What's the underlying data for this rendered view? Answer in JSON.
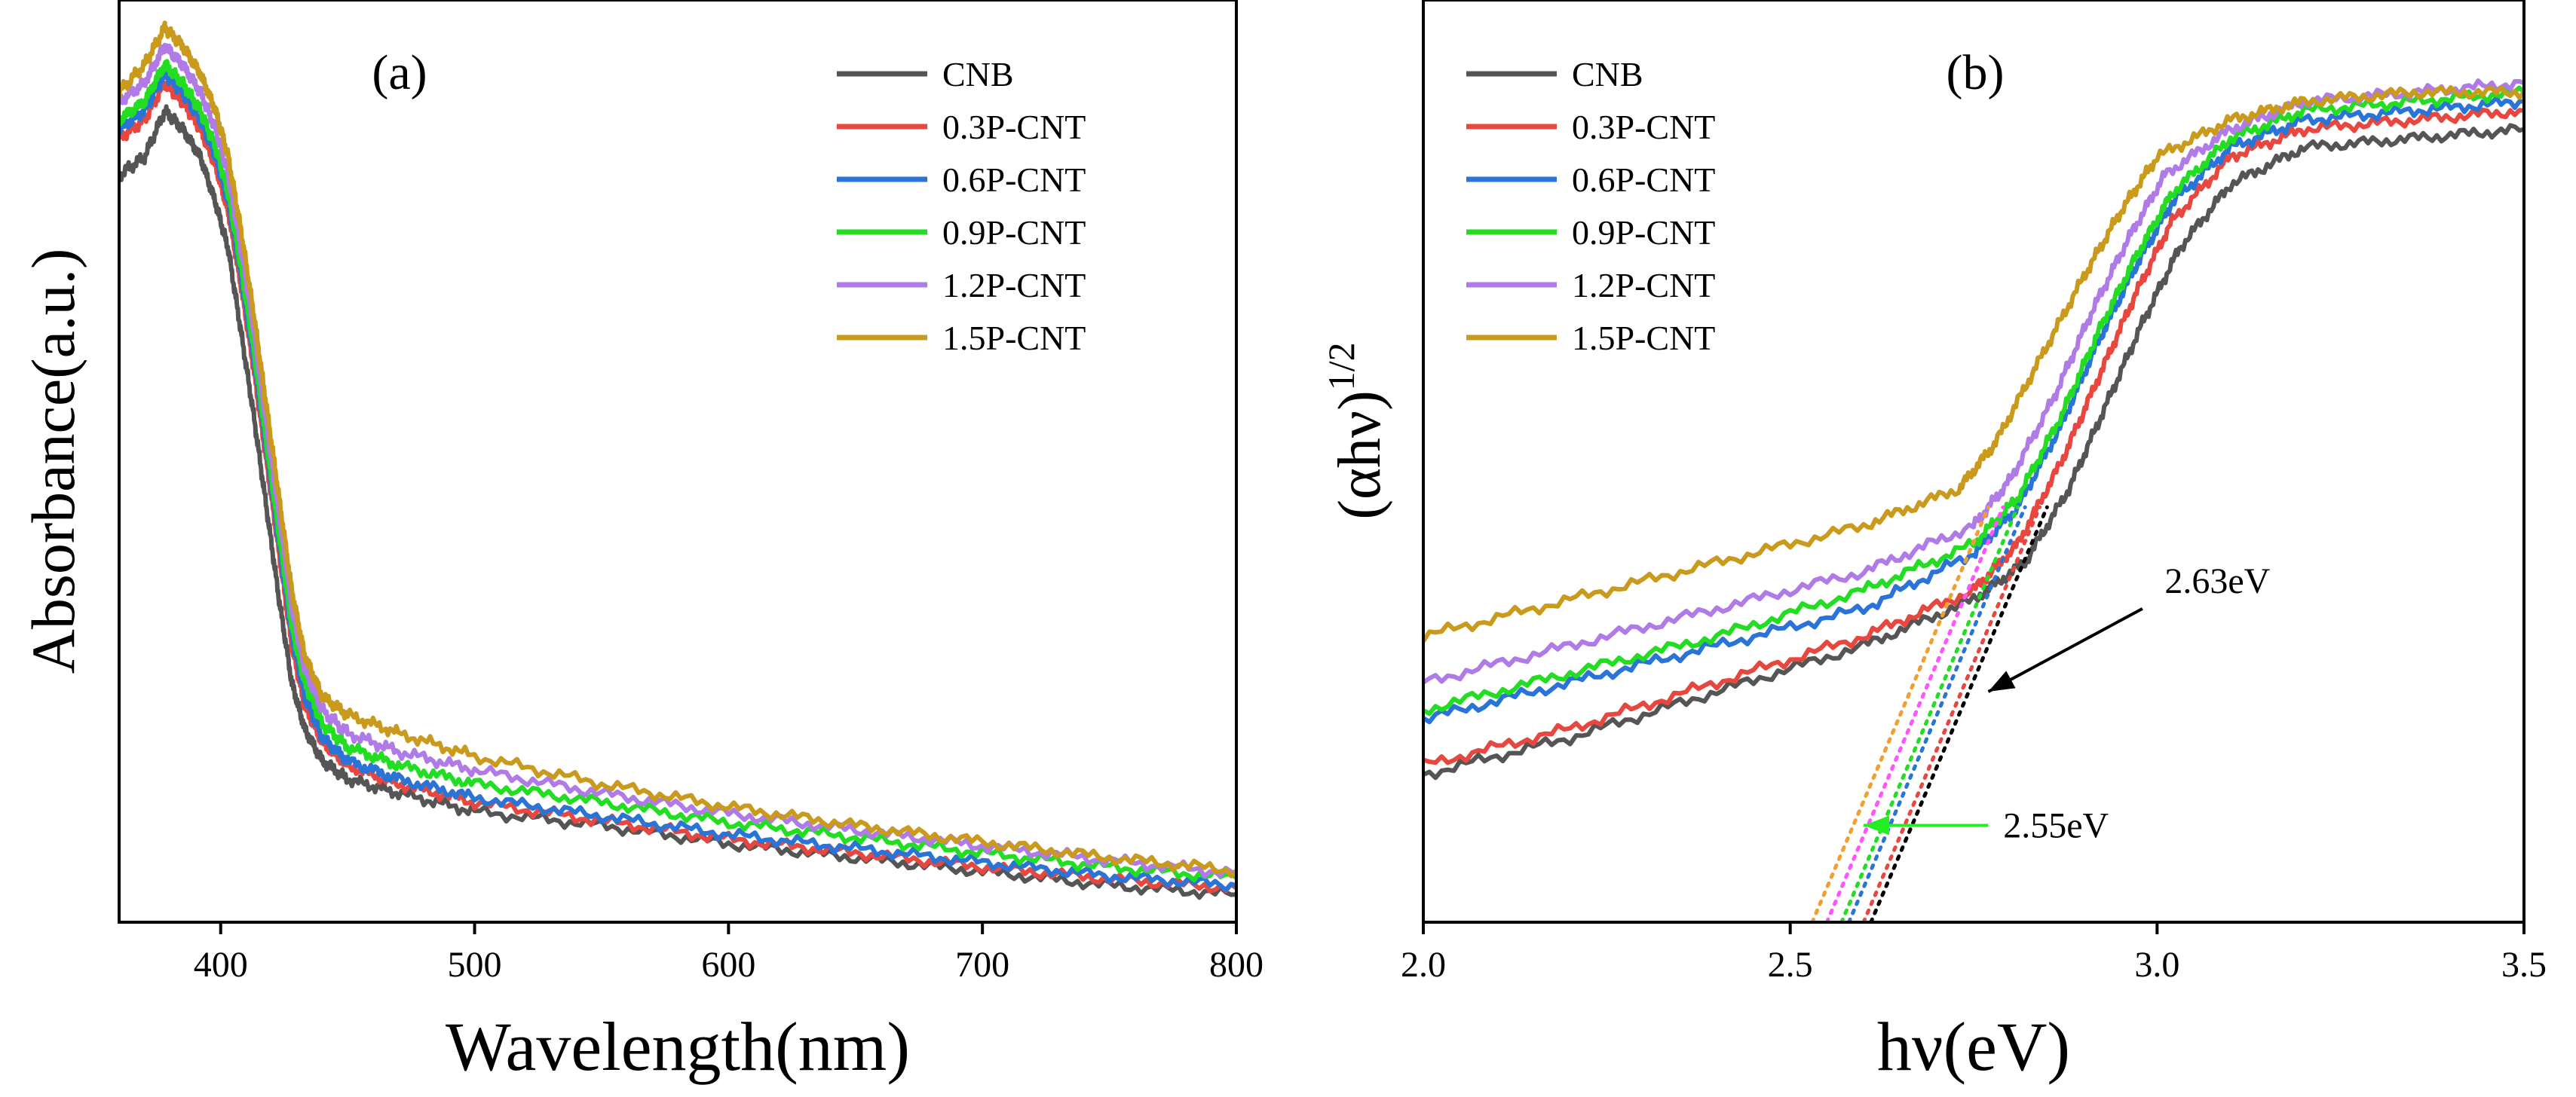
{
  "chart_data": [
    {
      "type": "line",
      "panel_label": "(a)",
      "xlabel": "Wavelength(nm)",
      "ylabel": "Absorbance(a.u.)",
      "xlim": [
        360,
        800
      ],
      "ylim": [
        0,
        1.0
      ],
      "xticks": [
        400,
        500,
        600,
        700,
        800
      ],
      "legend": "top-right",
      "series": [
        {
          "name": "CNB",
          "color": "#555555",
          "points": [
            [
              360,
              0.81
            ],
            [
              370,
              0.83
            ],
            [
              378,
              0.88
            ],
            [
              385,
              0.86
            ],
            [
              392,
              0.83
            ],
            [
              398,
              0.78
            ],
            [
              403,
              0.73
            ],
            [
              408,
              0.64
            ],
            [
              413,
              0.55
            ],
            [
              418,
              0.45
            ],
            [
              423,
              0.35
            ],
            [
              428,
              0.26
            ],
            [
              433,
              0.21
            ],
            [
              440,
              0.175
            ],
            [
              450,
              0.155
            ],
            [
              470,
              0.14
            ],
            [
              500,
              0.12
            ],
            [
              550,
              0.105
            ],
            [
              600,
              0.085
            ],
            [
              650,
              0.07
            ],
            [
              700,
              0.055
            ],
            [
              750,
              0.04
            ],
            [
              800,
              0.03
            ]
          ]
        },
        {
          "name": "0.3P-CNT",
          "color": "#e8473f",
          "points": [
            [
              360,
              0.85
            ],
            [
              370,
              0.87
            ],
            [
              378,
              0.91
            ],
            [
              385,
              0.89
            ],
            [
              392,
              0.86
            ],
            [
              398,
              0.82
            ],
            [
              403,
              0.77
            ],
            [
              408,
              0.69
            ],
            [
              413,
              0.6
            ],
            [
              418,
              0.5
            ],
            [
              423,
              0.4
            ],
            [
              428,
              0.3
            ],
            [
              433,
              0.235
            ],
            [
              440,
              0.195
            ],
            [
              450,
              0.17
            ],
            [
              470,
              0.15
            ],
            [
              500,
              0.13
            ],
            [
              550,
              0.11
            ],
            [
              600,
              0.09
            ],
            [
              650,
              0.075
            ],
            [
              700,
              0.06
            ],
            [
              750,
              0.047
            ],
            [
              800,
              0.037
            ]
          ]
        },
        {
          "name": "0.6P-CNT",
          "color": "#2a74d8",
          "points": [
            [
              360,
              0.86
            ],
            [
              370,
              0.88
            ],
            [
              378,
              0.92
            ],
            [
              385,
              0.9
            ],
            [
              392,
              0.87
            ],
            [
              398,
              0.83
            ],
            [
              403,
              0.78
            ],
            [
              408,
              0.7
            ],
            [
              413,
              0.61
            ],
            [
              418,
              0.51
            ],
            [
              423,
              0.41
            ],
            [
              428,
              0.31
            ],
            [
              433,
              0.245
            ],
            [
              440,
              0.2
            ],
            [
              450,
              0.175
            ],
            [
              470,
              0.155
            ],
            [
              500,
              0.135
            ],
            [
              550,
              0.115
            ],
            [
              600,
              0.095
            ],
            [
              650,
              0.08
            ],
            [
              700,
              0.065
            ],
            [
              750,
              0.05
            ],
            [
              800,
              0.04
            ]
          ]
        },
        {
          "name": "0.9P-CNT",
          "color": "#22dd22",
          "points": [
            [
              360,
              0.87
            ],
            [
              370,
              0.89
            ],
            [
              378,
              0.93
            ],
            [
              385,
              0.91
            ],
            [
              392,
              0.88
            ],
            [
              398,
              0.84
            ],
            [
              403,
              0.79
            ],
            [
              408,
              0.71
            ],
            [
              413,
              0.62
            ],
            [
              418,
              0.52
            ],
            [
              423,
              0.42
            ],
            [
              428,
              0.32
            ],
            [
              433,
              0.26
            ],
            [
              440,
              0.215
            ],
            [
              450,
              0.19
            ],
            [
              470,
              0.17
            ],
            [
              500,
              0.15
            ],
            [
              550,
              0.13
            ],
            [
              600,
              0.108
            ],
            [
              650,
              0.092
            ],
            [
              700,
              0.075
            ],
            [
              750,
              0.06
            ],
            [
              800,
              0.048
            ]
          ]
        },
        {
          "name": "1.2P-CNT",
          "color": "#b07be6",
          "points": [
            [
              360,
              0.89
            ],
            [
              370,
              0.91
            ],
            [
              378,
              0.95
            ],
            [
              385,
              0.93
            ],
            [
              392,
              0.9
            ],
            [
              398,
              0.86
            ],
            [
              403,
              0.81
            ],
            [
              408,
              0.73
            ],
            [
              413,
              0.64
            ],
            [
              418,
              0.54
            ],
            [
              423,
              0.44
            ],
            [
              428,
              0.34
            ],
            [
              433,
              0.275
            ],
            [
              440,
              0.23
            ],
            [
              450,
              0.205
            ],
            [
              470,
              0.185
            ],
            [
              500,
              0.165
            ],
            [
              550,
              0.14
            ],
            [
              600,
              0.118
            ],
            [
              650,
              0.1
            ],
            [
              700,
              0.083
            ],
            [
              750,
              0.067
            ],
            [
              800,
              0.053
            ]
          ]
        },
        {
          "name": "1.5P-CNT",
          "color": "#c99a1c",
          "points": [
            [
              360,
              0.9
            ],
            [
              370,
              0.93
            ],
            [
              378,
              0.97
            ],
            [
              385,
              0.95
            ],
            [
              392,
              0.92
            ],
            [
              398,
              0.88
            ],
            [
              403,
              0.83
            ],
            [
              408,
              0.75
            ],
            [
              413,
              0.66
            ],
            [
              418,
              0.56
            ],
            [
              423,
              0.46
            ],
            [
              428,
              0.36
            ],
            [
              433,
              0.29
            ],
            [
              440,
              0.245
            ],
            [
              450,
              0.225
            ],
            [
              470,
              0.205
            ],
            [
              500,
              0.18
            ],
            [
              550,
              0.15
            ],
            [
              600,
              0.125
            ],
            [
              650,
              0.105
            ],
            [
              700,
              0.087
            ],
            [
              750,
              0.07
            ],
            [
              800,
              0.056
            ]
          ]
        }
      ]
    },
    {
      "type": "line",
      "panel_label": "(b)",
      "xlabel": "hν(eV)",
      "ylabel_main": "(αhν)",
      "ylabel_sup": "1/2",
      "xlim": [
        2.0,
        3.5
      ],
      "ylim": [
        0,
        1.0
      ],
      "xticks": [
        "2.0",
        "2.5",
        "3.0",
        "3.5"
      ],
      "legend": "top-left",
      "series": [
        {
          "name": "CNB",
          "color": "#555555",
          "points": [
            [
              2.0,
              0.16
            ],
            [
              2.2,
              0.2
            ],
            [
              2.4,
              0.25
            ],
            [
              2.6,
              0.3
            ],
            [
              2.75,
              0.35
            ],
            [
              2.82,
              0.39
            ],
            [
              2.88,
              0.47
            ],
            [
              2.93,
              0.56
            ],
            [
              2.98,
              0.65
            ],
            [
              3.03,
              0.73
            ],
            [
              3.1,
              0.8
            ],
            [
              3.2,
              0.84
            ],
            [
              3.35,
              0.85
            ],
            [
              3.5,
              0.86
            ]
          ]
        },
        {
          "name": "0.3P-CNT",
          "color": "#e8473f",
          "points": [
            [
              2.0,
              0.17
            ],
            [
              2.2,
              0.21
            ],
            [
              2.4,
              0.26
            ],
            [
              2.6,
              0.31
            ],
            [
              2.75,
              0.36
            ],
            [
              2.81,
              0.41
            ],
            [
              2.87,
              0.5
            ],
            [
              2.92,
              0.59
            ],
            [
              2.97,
              0.68
            ],
            [
              3.02,
              0.76
            ],
            [
              3.1,
              0.83
            ],
            [
              3.2,
              0.86
            ],
            [
              3.35,
              0.87
            ],
            [
              3.5,
              0.88
            ]
          ]
        },
        {
          "name": "0.6P-CNT",
          "color": "#2a74d8",
          "points": [
            [
              2.0,
              0.22
            ],
            [
              2.2,
              0.26
            ],
            [
              2.4,
              0.3
            ],
            [
              2.6,
              0.34
            ],
            [
              2.75,
              0.4
            ],
            [
              2.81,
              0.45
            ],
            [
              2.87,
              0.54
            ],
            [
              2.92,
              0.63
            ],
            [
              2.97,
              0.71
            ],
            [
              3.02,
              0.78
            ],
            [
              3.1,
              0.84
            ],
            [
              3.2,
              0.87
            ],
            [
              3.35,
              0.88
            ],
            [
              3.5,
              0.89
            ]
          ]
        },
        {
          "name": "0.9P-CNT",
          "color": "#22dd22",
          "points": [
            [
              2.0,
              0.23
            ],
            [
              2.2,
              0.27
            ],
            [
              2.4,
              0.31
            ],
            [
              2.6,
              0.36
            ],
            [
              2.75,
              0.41
            ],
            [
              2.81,
              0.46
            ],
            [
              2.87,
              0.55
            ],
            [
              2.92,
              0.64
            ],
            [
              2.97,
              0.72
            ],
            [
              3.02,
              0.79
            ],
            [
              3.1,
              0.85
            ],
            [
              3.2,
              0.88
            ],
            [
              3.35,
              0.89
            ],
            [
              3.5,
              0.9
            ]
          ]
        },
        {
          "name": "1.2P-CNT",
          "color": "#b07be6",
          "points": [
            [
              2.0,
              0.26
            ],
            [
              2.2,
              0.3
            ],
            [
              2.4,
              0.34
            ],
            [
              2.6,
              0.38
            ],
            [
              2.75,
              0.43
            ],
            [
              2.8,
              0.48
            ],
            [
              2.86,
              0.57
            ],
            [
              2.91,
              0.66
            ],
            [
              2.96,
              0.74
            ],
            [
              3.01,
              0.81
            ],
            [
              3.1,
              0.86
            ],
            [
              3.2,
              0.89
            ],
            [
              3.35,
              0.9
            ],
            [
              3.5,
              0.91
            ]
          ]
        },
        {
          "name": "1.5P-CNT",
          "color": "#c99a1c",
          "points": [
            [
              2.0,
              0.31
            ],
            [
              2.2,
              0.35
            ],
            [
              2.4,
              0.39
            ],
            [
              2.6,
              0.43
            ],
            [
              2.73,
              0.47
            ],
            [
              2.78,
              0.52
            ],
            [
              2.84,
              0.61
            ],
            [
              2.9,
              0.7
            ],
            [
              2.95,
              0.77
            ],
            [
              3.0,
              0.83
            ],
            [
              3.1,
              0.87
            ],
            [
              3.2,
              0.89
            ],
            [
              3.35,
              0.9
            ],
            [
              3.5,
              0.9
            ]
          ]
        }
      ],
      "tangents": [
        {
          "name": "CNB",
          "color": "#000000",
          "x": [
            2.61,
            2.85
          ],
          "y": [
            0.0,
            0.45
          ]
        },
        {
          "name": "0.3P-CNT",
          "color": "#e8473f",
          "x": [
            2.6,
            2.84
          ],
          "y": [
            0.0,
            0.45
          ]
        },
        {
          "name": "0.6P-CNT",
          "color": "#2a74d8",
          "x": [
            2.58,
            2.82
          ],
          "y": [
            0.0,
            0.45
          ]
        },
        {
          "name": "0.9P-CNT",
          "color": "#22dd22",
          "x": [
            2.57,
            2.81
          ],
          "y": [
            0.0,
            0.45
          ]
        },
        {
          "name": "1.2P-CNT",
          "color": "#ff55ff",
          "x": [
            2.55,
            2.79
          ],
          "y": [
            0.0,
            0.45
          ]
        },
        {
          "name": "1.5P-CNT",
          "color": "#f0a030",
          "x": [
            2.53,
            2.77
          ],
          "y": [
            0.0,
            0.45
          ]
        }
      ],
      "annotations": [
        {
          "text": "2.63eV",
          "color": "#000000",
          "text_x": 3.0,
          "text_y": 0.37,
          "arrow_from": [
            2.98,
            0.34
          ],
          "arrow_to": [
            2.77,
            0.25
          ]
        },
        {
          "text": "2.55eV",
          "color": "#22ee22",
          "text_x": 2.78,
          "text_y": 0.105,
          "arrow_from": [
            2.77,
            0.105
          ],
          "arrow_to": [
            2.6,
            0.105
          ]
        }
      ]
    }
  ]
}
